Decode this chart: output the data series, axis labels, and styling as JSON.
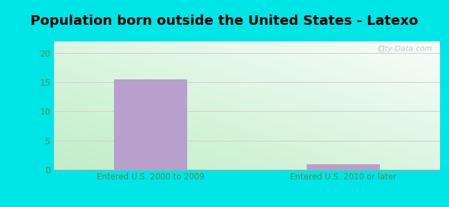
{
  "title": "Population born outside the United States - Latexo",
  "categories": [
    "Entered U.S. 2000 to 2009",
    "Entered U.S. 2010 or later"
  ],
  "values": [
    15.5,
    1.0
  ],
  "bar_color": "#b8a0cc",
  "outer_bg": "#00e5e5",
  "ylim": [
    0,
    22
  ],
  "yticks": [
    0,
    5,
    10,
    15,
    20
  ],
  "grid_color": "#d0d0d0",
  "title_fontsize": 14,
  "tick_label_color": "#558855",
  "watermark": "City-Data.com",
  "grad_top_left": "#c8eeda",
  "grad_top_right": "#f0fdf8",
  "grad_bottom_left": "#c0eec8",
  "grad_bottom_right": "#e8fde8"
}
